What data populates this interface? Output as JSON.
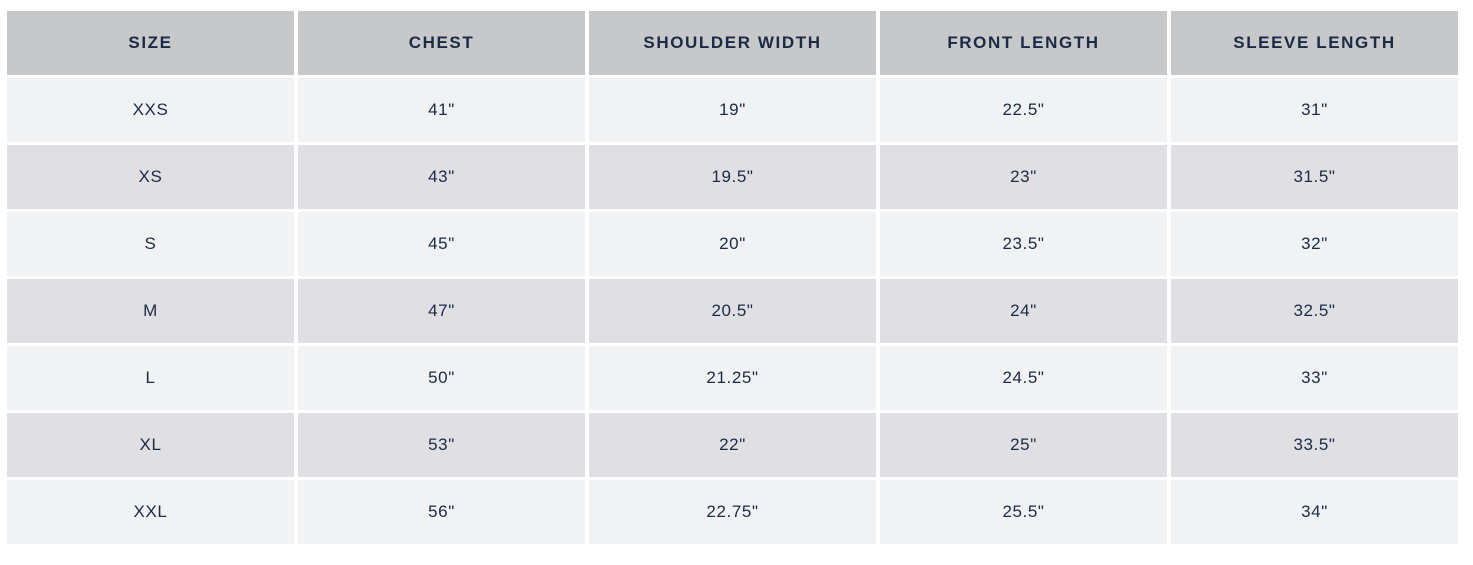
{
  "table": {
    "columns": {
      "size": "SIZE",
      "chest": "CHEST",
      "shoulder_width": "SHOULDER WIDTH",
      "front_length": "FRONT LENGTH",
      "sleeve_length": "SLEEVE LENGTH"
    },
    "rows": [
      {
        "size": "XXS",
        "chest": "41\"",
        "shoulder_width": "19\"",
        "front_length": "22.5\"",
        "sleeve_length": "31\""
      },
      {
        "size": "XS",
        "chest": "43\"",
        "shoulder_width": "19.5\"",
        "front_length": "23\"",
        "sleeve_length": "31.5\""
      },
      {
        "size": "S",
        "chest": "45\"",
        "shoulder_width": "20\"",
        "front_length": "23.5\"",
        "sleeve_length": "32\""
      },
      {
        "size": "M",
        "chest": "47\"",
        "shoulder_width": "20.5\"",
        "front_length": "24\"",
        "sleeve_length": "32.5\""
      },
      {
        "size": "L",
        "chest": "50\"",
        "shoulder_width": "21.25\"",
        "front_length": "24.5\"",
        "sleeve_length": "33\""
      },
      {
        "size": "XL",
        "chest": "53\"",
        "shoulder_width": "22\"",
        "front_length": "25\"",
        "sleeve_length": "33.5\""
      },
      {
        "size": "XXL",
        "chest": "56\"",
        "shoulder_width": "22.75\"",
        "front_length": "25.5\"",
        "sleeve_length": "34\""
      }
    ]
  },
  "colors": {
    "header_bg": "#c7c8ca",
    "row_light_bg": "#f1f2f4",
    "row_dark_bg": "#e0e0e4",
    "text": "#1b2a45",
    "gutter": "#ffffff"
  }
}
